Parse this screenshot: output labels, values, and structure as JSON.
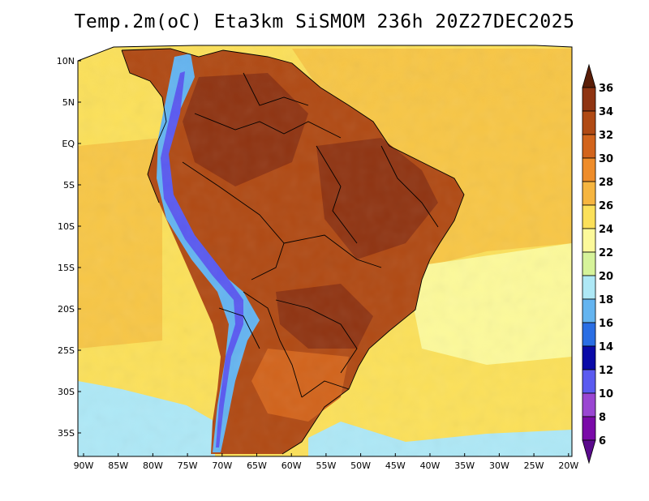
{
  "title": "Temp.2m(oC) Eta3km SiSMOM 236h 20Z27DEC2025",
  "lat_labels": [
    "10N",
    "5N",
    "EQ",
    "5S",
    "10S",
    "15S",
    "20S",
    "25S",
    "30S",
    "35S"
  ],
  "lon_labels": [
    "90W",
    "85W",
    "80W",
    "75W",
    "70W",
    "65W",
    "60W",
    "55W",
    "50W",
    "45W",
    "40W",
    "35W",
    "30W",
    "25W",
    "20W"
  ],
  "colorbar": {
    "labels": [
      "36",
      "34",
      "32",
      "30",
      "28",
      "26",
      "24",
      "22",
      "20",
      "18",
      "16",
      "14",
      "12",
      "10",
      "8",
      "6"
    ],
    "colors": [
      "#6e2a0c",
      "#8f3412",
      "#b04a14",
      "#d2641c",
      "#ee8c2a",
      "#f6b540",
      "#fbe05a",
      "#fcf99a",
      "#d6f39a",
      "#aee8f6",
      "#64b4f0",
      "#2a6ee4",
      "#0a0aa8",
      "#5a5af0",
      "#9a46d2",
      "#7a0aa8"
    ],
    "top_cap_color": "#5a1e08",
    "bottom_cap_color": "#5a0a8c"
  },
  "map_colors": {
    "ocean_warm": "#f7c646",
    "ocean_mild": "#fbe05a",
    "ocean_cool": "#fcf99a",
    "ocean_cold": "#aee8f6",
    "land_hot": "#b04a14",
    "land_very_hot": "#8f3412",
    "land_warm": "#d2641c",
    "andes_cold": "#5a5af0",
    "andes_cool": "#64b4f0",
    "border": "#000000"
  }
}
